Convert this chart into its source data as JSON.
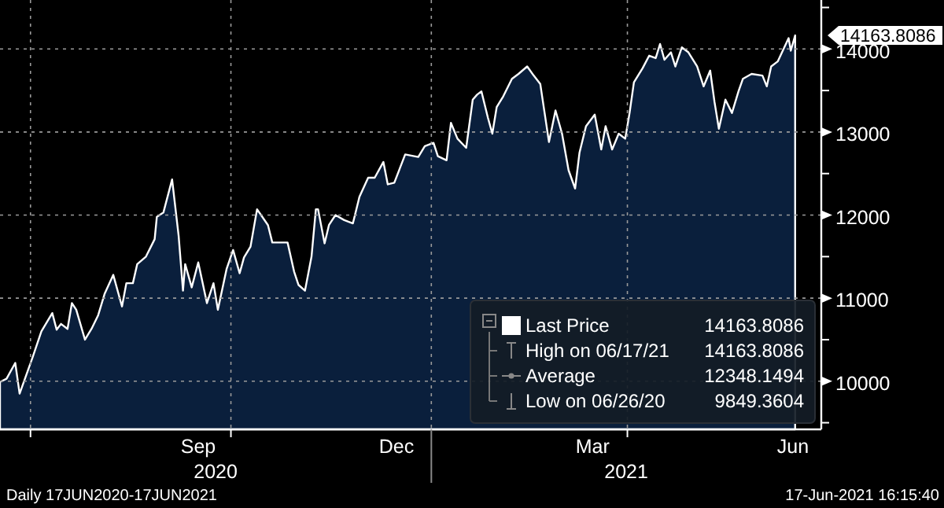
{
  "chart_data": {
    "type": "area",
    "legend": "bottom right",
    "grid": true,
    "xlim": [
      "2020-06-17",
      "2021-06-29"
    ],
    "xticks": [
      {
        "value": "2020-07-01",
        "label": null
      },
      {
        "value": "2020-09-16",
        "label": "Sep"
      },
      {
        "value": "2020-10-01",
        "label": null
      },
      {
        "value": "2020-12-16",
        "label": "Dec"
      },
      {
        "value": "2021-01-01",
        "label": null
      },
      {
        "value": "2021-03-16",
        "label": "Mar"
      },
      {
        "value": "2021-04-01",
        "label": null
      },
      {
        "value": "2021-06-16",
        "label": "Jun"
      }
    ],
    "ylim": [
      9420,
      14590
    ],
    "yticks": [
      {
        "value": 9500,
        "label": null
      },
      10000,
      {
        "value": 10500,
        "label": null
      },
      11000,
      {
        "value": 11500,
        "label": null
      },
      12000,
      {
        "value": 12500,
        "label": null
      },
      13000,
      {
        "value": 13500,
        "label": null
      },
      14000,
      {
        "value": 14500,
        "label": null
      }
    ],
    "x": [
      "2020-06-17",
      "2020-06-20",
      "2020-06-24",
      "2020-06-26",
      "2020-07-02",
      "2020-07-06",
      "2020-07-11",
      "2020-07-13",
      "2020-07-15",
      "2020-07-18",
      "2020-07-20",
      "2020-07-22",
      "2020-07-26",
      "2020-07-29",
      "2020-08-01",
      "2020-08-04",
      "2020-08-08",
      "2020-08-12",
      "2020-08-14",
      "2020-08-17",
      "2020-08-19",
      "2020-08-23",
      "2020-08-27",
      "2020-08-28",
      "2020-08-31",
      "2020-09-04",
      "2020-09-07",
      "2020-09-09",
      "2020-09-10",
      "2020-09-13",
      "2020-09-16",
      "2020-09-20",
      "2020-09-23",
      "2020-09-25",
      "2020-09-29",
      "2020-10-02",
      "2020-10-05",
      "2020-10-07",
      "2020-10-10",
      "2020-10-13",
      "2020-10-18",
      "2020-10-20",
      "2020-10-27",
      "2020-10-30",
      "2020-11-01",
      "2020-11-04",
      "2020-11-07",
      "2020-11-09",
      "2020-11-10",
      "2020-11-13",
      "2020-11-15",
      "2020-11-18",
      "2020-11-22",
      "2020-11-26",
      "2020-11-29",
      "2020-12-03",
      "2020-12-06",
      "2020-12-10",
      "2020-12-12",
      "2020-12-15",
      "2020-12-20",
      "2020-12-26",
      "2020-12-29",
      "2021-01-02",
      "2021-01-04",
      "2021-01-08",
      "2021-01-10",
      "2021-01-13",
      "2021-01-17",
      "2021-01-20",
      "2021-01-22",
      "2021-01-24",
      "2021-01-27",
      "2021-01-29",
      "2021-01-31",
      "2021-02-03",
      "2021-02-07",
      "2021-02-10",
      "2021-02-14",
      "2021-02-17",
      "2021-02-20",
      "2021-02-22",
      "2021-02-24",
      "2021-02-27",
      "2021-03-02",
      "2021-03-05",
      "2021-03-08",
      "2021-03-10",
      "2021-03-13",
      "2021-03-17",
      "2021-03-20",
      "2021-03-22",
      "2021-03-25",
      "2021-03-28",
      "2021-03-31",
      "2021-04-02",
      "2021-04-04",
      "2021-04-08",
      "2021-04-11",
      "2021-04-14",
      "2021-04-16",
      "2021-04-18",
      "2021-04-21",
      "2021-04-23",
      "2021-04-26",
      "2021-04-29",
      "2021-05-03",
      "2021-05-06",
      "2021-05-09",
      "2021-05-11",
      "2021-05-13",
      "2021-05-16",
      "2021-05-19",
      "2021-05-22",
      "2021-05-24",
      "2021-05-28",
      "2021-06-02",
      "2021-06-04",
      "2021-06-06",
      "2021-06-09",
      "2021-06-14",
      "2021-06-15",
      "2021-06-17"
    ],
    "series": [
      {
        "name": "Last Price",
        "color": "#ffffff",
        "values": [
          9990,
          10030,
          10220,
          9850,
          10290,
          10600,
          10820,
          10620,
          10690,
          10630,
          10940,
          10860,
          10500,
          10630,
          10790,
          11050,
          11280,
          10900,
          11180,
          11180,
          11410,
          11500,
          11710,
          11980,
          12030,
          12430,
          11750,
          11090,
          11410,
          11130,
          11430,
          10940,
          11180,
          10860,
          11350,
          11580,
          11300,
          11490,
          11620,
          12070,
          11880,
          11670,
          11670,
          11320,
          11160,
          11090,
          11500,
          12070,
          12070,
          11660,
          11880,
          12000,
          11940,
          11900,
          12220,
          12450,
          12450,
          12640,
          12370,
          12390,
          12730,
          12700,
          12830,
          12870,
          12710,
          12660,
          13110,
          12920,
          12810,
          13390,
          13450,
          13490,
          13170,
          12980,
          13300,
          13430,
          13640,
          13700,
          13790,
          13680,
          13580,
          13230,
          12880,
          13260,
          12980,
          12540,
          12320,
          12750,
          13070,
          13210,
          12790,
          13070,
          12790,
          12980,
          12920,
          13230,
          13600,
          13770,
          13920,
          13890,
          14060,
          13870,
          13960,
          13790,
          14020,
          13960,
          13790,
          13550,
          13740,
          13360,
          13040,
          13390,
          13230,
          13490,
          13640,
          13700,
          13680,
          13550,
          13790,
          13850,
          14130,
          13980,
          14163.8086
        ]
      }
    ],
    "annotations": [
      "High on 06/17/21 14163.8086",
      "Average 12348.1494",
      "Low on 06/26/20 9849.3604",
      "Daily 17JUN2020-17JUN2021",
      "17-Jun-2021 16:15:40",
      {
        "text": "14163.8086",
        "x": "2021-06-17",
        "y": 14163.8086
      },
      "2020",
      "2021"
    ]
  }
}
